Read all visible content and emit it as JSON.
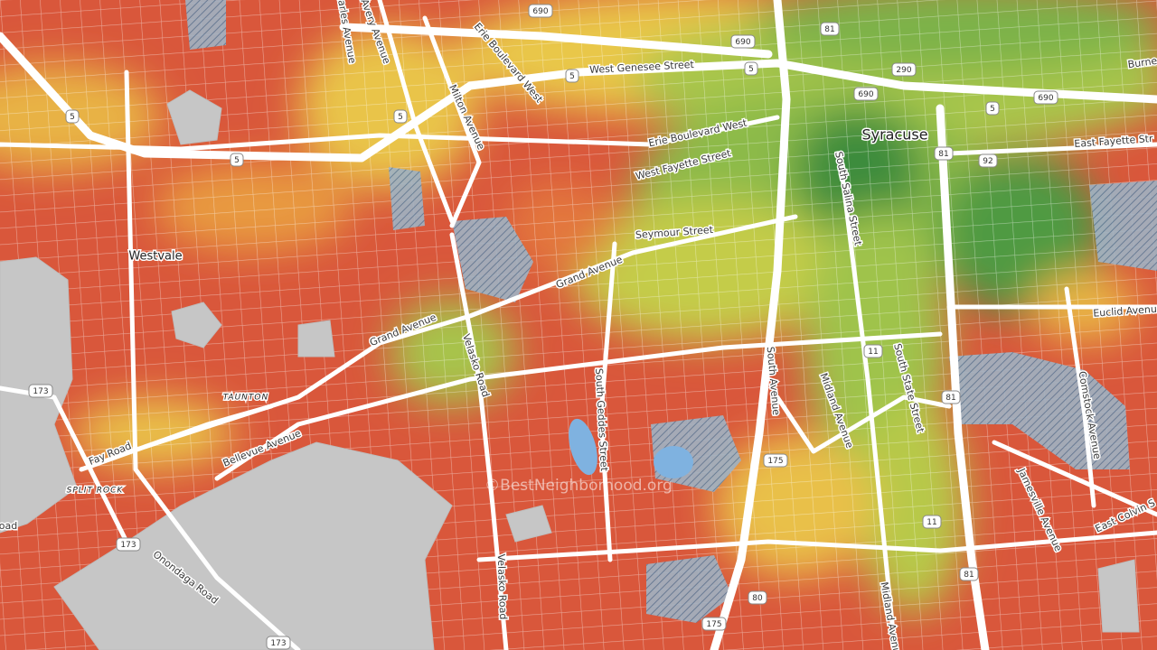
{
  "places": [
    "Syracuse",
    "Westvale",
    "TAUNTON",
    "SPLIT ROCK"
  ],
  "streets": [
    "West Genesee Street",
    "Erie Boulevard West",
    "Erie Boulevard West",
    "West Fayette Street",
    "Seymour Street",
    "Grand Avenue",
    "Grand Avenue",
    "Milton Avenue",
    "Charles Avenue",
    "Avery Avenue",
    "Velasko Road",
    "Velasko Road",
    "South Geddes Street",
    "South Avenue",
    "Midland Avenue",
    "Midland Avenue",
    "South Salina Street",
    "South State Street",
    "Comstock Avenue",
    "Euclid Avenue",
    "East Fayette Str",
    "Burne",
    "East Colvin S",
    "Jamesville Avenue",
    "Bellevue Avenue",
    "Fay Road",
    "Onondaga Road",
    "oad"
  ],
  "shields": [
    "690",
    "690",
    "690",
    "690",
    "5",
    "5",
    "5",
    "5",
    "5",
    "5",
    "81",
    "81",
    "81",
    "81",
    "290",
    "92",
    "173",
    "173",
    "173",
    "175",
    "175",
    "11",
    "11",
    "80"
  ],
  "watermark": "©BestNeighborhood.org"
}
